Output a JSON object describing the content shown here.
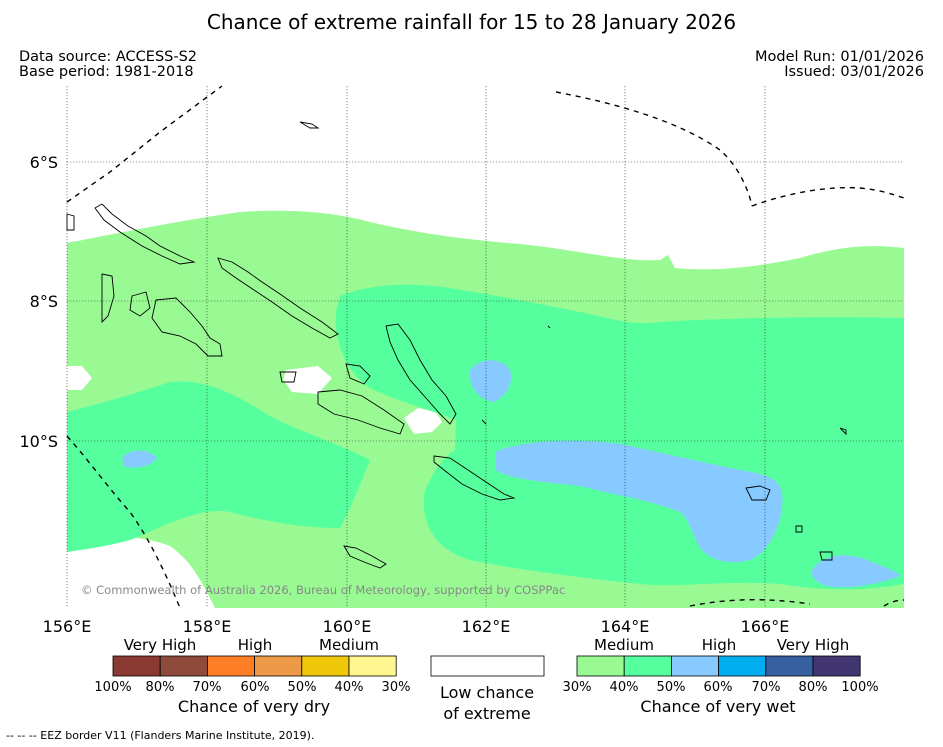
{
  "title": "Chance of extreme rainfall for 15 to 28 January 2026",
  "header": {
    "data_source": "Data source: ACCESS-S2",
    "base_period": "Base period: 1981-2018",
    "model_run": "Model Run: 01/01/2026",
    "issued": "Issued: 03/01/2026"
  },
  "map": {
    "lat_labels": [
      "6°S",
      "8°S",
      "10°S"
    ],
    "lon_labels": [
      "156°E",
      "158°E",
      "160°E",
      "162°E",
      "164°E",
      "166°E"
    ],
    "copyright": "© Commonwealth of Australia 2026, Bureau of Meteorology, supported by COSPPac"
  },
  "dry_scale": {
    "categories": [
      "Very High",
      "High",
      "Medium"
    ],
    "ticks": [
      "100%",
      "80%",
      "70%",
      "60%",
      "50%",
      "40%",
      "30%"
    ],
    "colors": [
      "#8b3a33",
      "#8e4b3c",
      "#ff7f26",
      "#ec9a48",
      "#f0c80a",
      "#fff68f"
    ],
    "caption": "Chance of very dry"
  },
  "low_chance": {
    "caption_line1": "Low chance",
    "caption_line2": "of extreme",
    "color": "#ffffff"
  },
  "wet_scale": {
    "categories": [
      "Medium",
      "High",
      "Very High"
    ],
    "ticks": [
      "30%",
      "40%",
      "50%",
      "60%",
      "70%",
      "80%",
      "100%"
    ],
    "colors": [
      "#99fa94",
      "#55ff9d",
      "#86caff",
      "#00aeef",
      "#3660a0",
      "#413671"
    ],
    "caption": "Chance of very wet"
  },
  "footer": "--  --  -- EEZ border V11 (Flanders Marine Institute, 2019)."
}
